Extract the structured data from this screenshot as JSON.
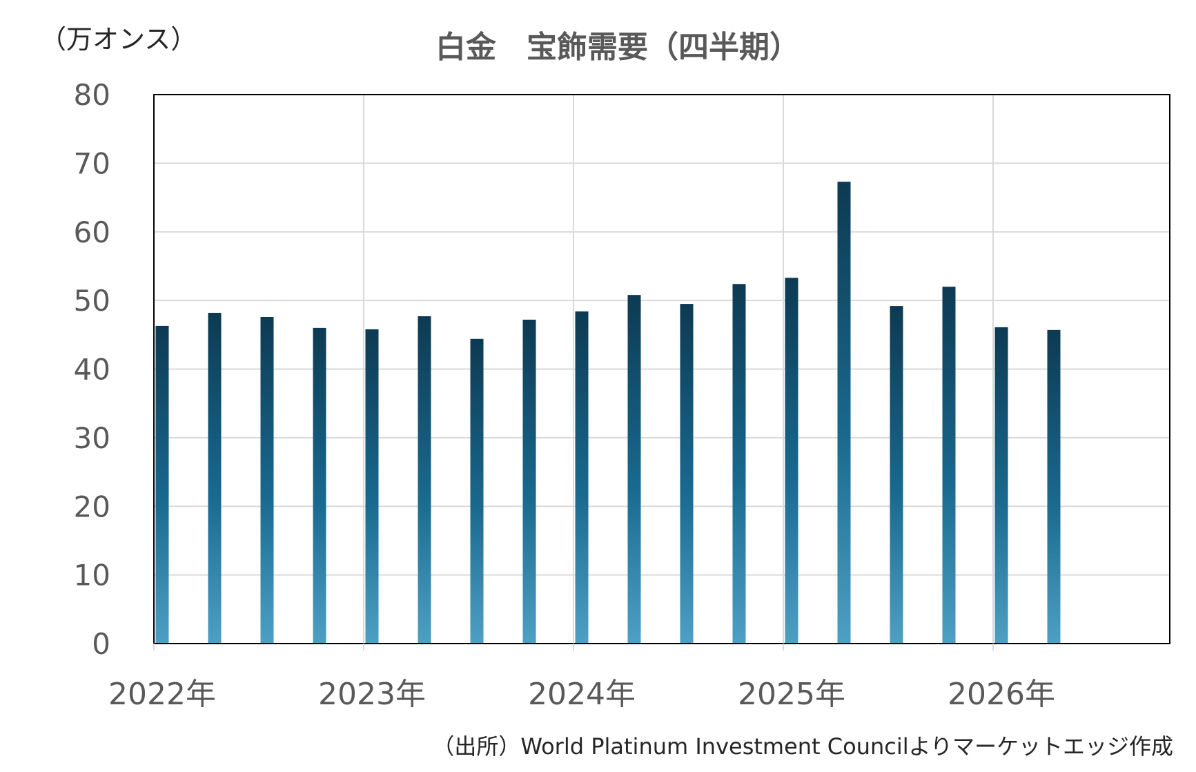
{
  "chart_data": {
    "type": "bar",
    "title": "白金　宝飾需要（四半期）",
    "ylabel": "（万オンス）",
    "ylim": [
      0,
      80
    ],
    "yticks": [
      0,
      10,
      20,
      30,
      40,
      50,
      60,
      70,
      80
    ],
    "x_year_labels": [
      "2022年",
      "2023年",
      "2024年",
      "2025年",
      "2026年"
    ],
    "categories": [
      "2022Q1",
      "2022Q2",
      "2022Q3",
      "2022Q4",
      "2023Q1",
      "2023Q2",
      "2023Q3",
      "2023Q4",
      "2024Q1",
      "2024Q2",
      "2024Q3",
      "2024Q4",
      "2025Q1",
      "2025Q2",
      "2025Q3",
      "2025Q4",
      "2026Q1",
      "2026Q2"
    ],
    "values": [
      46.3,
      48.2,
      47.6,
      46.0,
      45.8,
      47.7,
      44.4,
      47.2,
      48.4,
      50.8,
      49.5,
      52.4,
      53.3,
      67.3,
      49.2,
      52.0,
      46.1,
      45.7
    ],
    "grid": true,
    "legend": "none",
    "bar_gradient": [
      "#0d3a52",
      "#19698f",
      "#4ea0c3"
    ],
    "source": "（出所）World Platinum Investment Councilよりマーケットエッジ作成"
  }
}
